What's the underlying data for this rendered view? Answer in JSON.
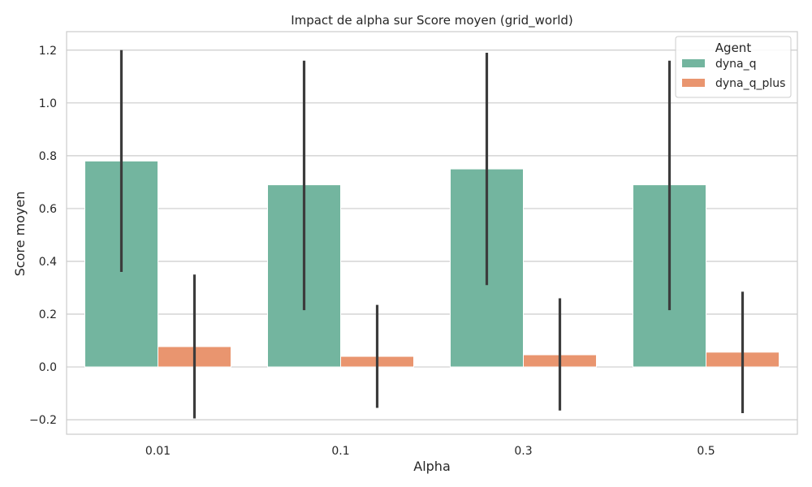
{
  "chart_data": {
    "type": "bar",
    "title": "Impact de alpha sur Score moyen (grid_world)",
    "xlabel": "Alpha",
    "ylabel": "Score moyen",
    "categories": [
      "0.01",
      "0.1",
      "0.3",
      "0.5"
    ],
    "ylim": [
      -0.255,
      1.27
    ],
    "yticks": [
      -0.2,
      0.0,
      0.2,
      0.4,
      0.6,
      0.8,
      1.0,
      1.2
    ],
    "ytick_labels": [
      "−0.2",
      "0.0",
      "0.2",
      "0.4",
      "0.6",
      "0.8",
      "1.0",
      "1.2"
    ],
    "grid": true,
    "legend": {
      "title": "Agent",
      "placement": "top-right"
    },
    "series": [
      {
        "name": "dyna_q",
        "color": "#73b59f",
        "values": [
          0.78,
          0.69,
          0.75,
          0.69
        ],
        "err_low": [
          0.36,
          0.215,
          0.31,
          0.215
        ],
        "err_high": [
          1.2,
          1.16,
          1.19,
          1.16
        ]
      },
      {
        "name": "dyna_q_plus",
        "color": "#e9956f",
        "values": [
          0.077,
          0.04,
          0.046,
          0.056
        ],
        "err_low": [
          -0.195,
          -0.155,
          -0.165,
          -0.175
        ],
        "err_high": [
          0.35,
          0.235,
          0.26,
          0.285
        ]
      }
    ]
  }
}
